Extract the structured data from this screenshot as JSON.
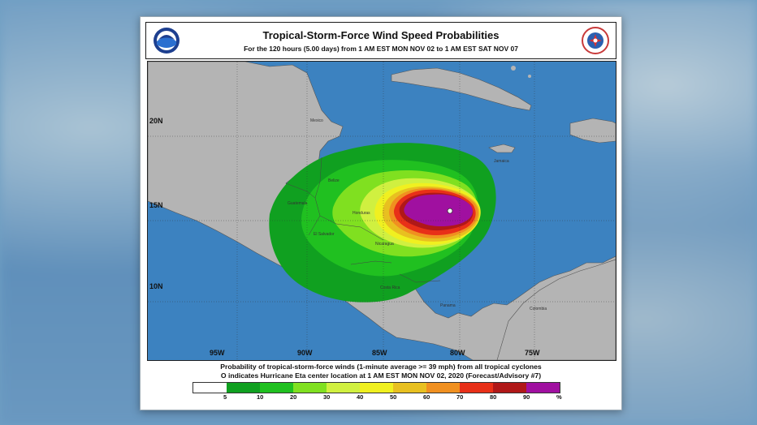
{
  "header": {
    "title": "Tropical-Storm-Force Wind Speed Probabilities",
    "subtitle": "For the 120 hours (5.00 days) from 1 AM EST MON NOV 02 to 1 AM EST SAT NOV 07"
  },
  "logos": {
    "left": "NOAA",
    "right": "National Weather Service"
  },
  "map": {
    "lat_labels": [
      "20N",
      "15N",
      "10N"
    ],
    "lon_labels": [
      "95W",
      "90W",
      "85W",
      "80W",
      "75W"
    ],
    "places": [
      "Mexico",
      "Belize",
      "Guatemala",
      "Honduras",
      "El Salvador",
      "Nicaragua",
      "Costa Rica",
      "Panama",
      "Jamaica",
      "Colombia"
    ],
    "ocean_color": "#3c82c0",
    "land_color": "#b4b4b4"
  },
  "footer": {
    "line1": "Probability of tropical-storm-force winds (1-minute average >= 39 mph) from all tropical cyclones",
    "line2": "O indicates Hurricane Eta center location at 1 AM EST MON NOV 02, 2020 (Forecast/Advisory #7)"
  },
  "legend": {
    "labels": [
      "5",
      "10",
      "20",
      "30",
      "40",
      "50",
      "60",
      "70",
      "80",
      "90",
      "%"
    ],
    "colors": [
      "#ffffff",
      "#10a020",
      "#20c020",
      "#80e020",
      "#d0f040",
      "#f0f020",
      "#e8c020",
      "#f09020",
      "#e83018",
      "#b01818",
      "#a010a0"
    ]
  }
}
